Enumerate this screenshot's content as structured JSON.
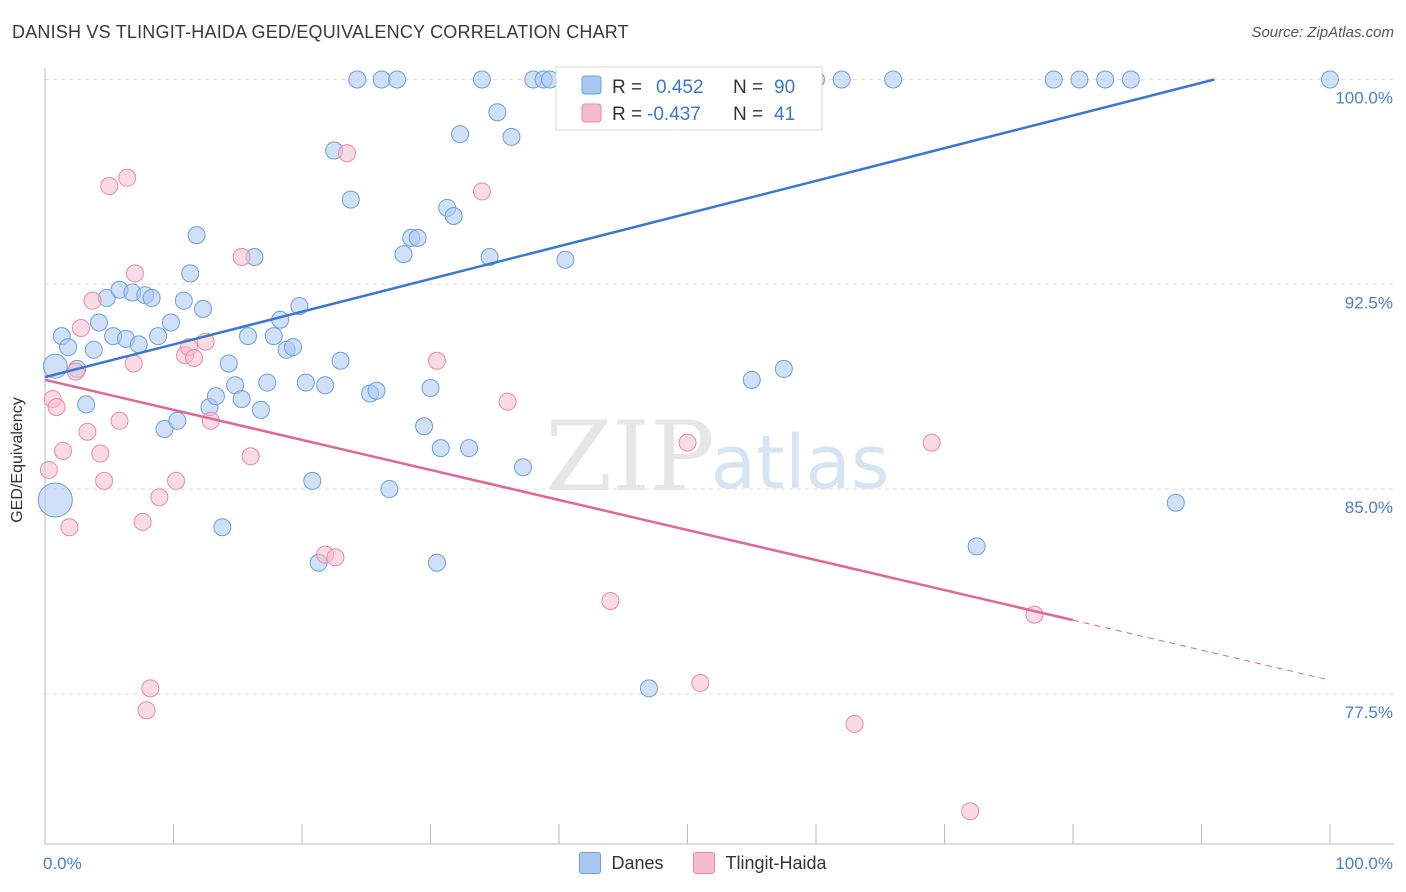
{
  "header": {
    "title": "DANISH VS TLINGIT-HAIDA GED/EQUIVALENCY CORRELATION CHART",
    "source": "Source: ZipAtlas.com"
  },
  "colors": {
    "danes_fill": "#a9c8f0",
    "danes_stroke": "#6a9fe0",
    "danes_line": "#3a78d0",
    "tlingit_fill": "#f6bccd",
    "tlingit_stroke": "#e88aa6",
    "tlingit_line": "#e0669a",
    "tick_label": "#4a7fd0",
    "grid": "#dddddd"
  },
  "watermark": {
    "zip": "ZIP",
    "atlas": "atlas"
  },
  "legend_stats": [
    {
      "r_label": "R =",
      "r_value": "0.452",
      "n_label": "N =",
      "n_value": "90"
    },
    {
      "r_label": "R =",
      "r_value": "-0.437",
      "n_label": "N =",
      "n_value": "41"
    }
  ],
  "chart_data": {
    "type": "scatter",
    "title": "DANISH VS TLINGIT-HAIDA GED/EQUIVALENCY CORRELATION CHART",
    "xlabel": "",
    "ylabel": "GED/Equivalency",
    "xlim": [
      0,
      100
    ],
    "ylim": [
      72,
      100.5
    ],
    "x_tick_labels": [
      "0.0%",
      "100.0%"
    ],
    "y_ticks": [
      {
        "value": 77.5,
        "label": "77.5%"
      },
      {
        "value": 85.0,
        "label": "85.0%"
      },
      {
        "value": 92.5,
        "label": "92.5%"
      },
      {
        "value": 100.0,
        "label": "100.0%"
      }
    ],
    "grid": true,
    "legend_position": "bottom",
    "series": [
      {
        "name": "Danes",
        "trend": {
          "x": [
            0,
            91
          ],
          "y": [
            89.1,
            100.0
          ]
        },
        "points": [
          [
            0.8,
            84.6
          ],
          [
            0.8,
            89.5
          ],
          [
            1.3,
            90.6
          ],
          [
            1.8,
            90.2
          ],
          [
            2.5,
            89.4
          ],
          [
            3.2,
            88.1
          ],
          [
            3.8,
            90.1
          ],
          [
            4.2,
            91.1
          ],
          [
            4.8,
            92.0
          ],
          [
            5.3,
            90.6
          ],
          [
            5.8,
            92.3
          ],
          [
            6.3,
            90.5
          ],
          [
            6.8,
            92.2
          ],
          [
            7.3,
            90.3
          ],
          [
            7.8,
            92.1
          ],
          [
            8.3,
            92.0
          ],
          [
            8.8,
            90.6
          ],
          [
            9.3,
            87.2
          ],
          [
            9.8,
            91.1
          ],
          [
            10.3,
            87.5
          ],
          [
            10.8,
            91.9
          ],
          [
            11.3,
            92.9
          ],
          [
            11.8,
            94.3
          ],
          [
            12.3,
            91.6
          ],
          [
            12.8,
            88.0
          ],
          [
            13.3,
            88.4
          ],
          [
            13.8,
            83.6
          ],
          [
            14.3,
            89.6
          ],
          [
            14.8,
            88.8
          ],
          [
            15.3,
            88.3
          ],
          [
            15.8,
            90.6
          ],
          [
            16.3,
            93.5
          ],
          [
            16.8,
            87.9
          ],
          [
            17.3,
            88.9
          ],
          [
            17.8,
            90.6
          ],
          [
            18.3,
            91.2
          ],
          [
            18.8,
            90.1
          ],
          [
            19.3,
            90.2
          ],
          [
            19.8,
            91.7
          ],
          [
            20.3,
            88.9
          ],
          [
            20.8,
            85.3
          ],
          [
            21.3,
            82.3
          ],
          [
            21.8,
            88.8
          ],
          [
            22.5,
            97.4
          ],
          [
            23.0,
            89.7
          ],
          [
            23.8,
            95.6
          ],
          [
            24.3,
            100.0
          ],
          [
            25.3,
            88.5
          ],
          [
            25.8,
            88.6
          ],
          [
            26.2,
            100.0
          ],
          [
            26.8,
            85.0
          ],
          [
            27.4,
            100.0
          ],
          [
            27.9,
            93.6
          ],
          [
            28.5,
            94.2
          ],
          [
            29.0,
            94.2
          ],
          [
            29.5,
            87.3
          ],
          [
            30.0,
            88.7
          ],
          [
            30.5,
            82.3
          ],
          [
            30.8,
            86.5
          ],
          [
            31.3,
            95.3
          ],
          [
            31.8,
            95.0
          ],
          [
            32.3,
            98.0
          ],
          [
            33.0,
            86.5
          ],
          [
            34.0,
            100.0
          ],
          [
            34.6,
            93.5
          ],
          [
            35.2,
            98.8
          ],
          [
            36.3,
            97.9
          ],
          [
            37.2,
            85.8
          ],
          [
            38.0,
            100.0
          ],
          [
            38.8,
            100.0
          ],
          [
            39.3,
            100.0
          ],
          [
            40.5,
            93.4
          ],
          [
            42.3,
            100.0
          ],
          [
            44.0,
            100.0
          ],
          [
            46.0,
            100.0
          ],
          [
            47.0,
            77.7
          ],
          [
            48.5,
            100.0
          ],
          [
            55.0,
            89.0
          ],
          [
            55.8,
            100.0
          ],
          [
            57.5,
            89.4
          ],
          [
            60.0,
            100.0
          ],
          [
            62.0,
            100.0
          ],
          [
            66.0,
            100.0
          ],
          [
            72.5,
            82.9
          ],
          [
            78.5,
            100.0
          ],
          [
            80.5,
            100.0
          ],
          [
            82.5,
            100.0
          ],
          [
            84.5,
            100.0
          ],
          [
            88.0,
            84.5
          ],
          [
            100.0,
            100.0
          ]
        ]
      },
      {
        "name": "Tlingit-Haida",
        "trend": {
          "x": [
            0,
            80
          ],
          "y": [
            89.0,
            80.2
          ],
          "dashed_to": {
            "x": 100,
            "y": 78.0
          }
        },
        "points": [
          [
            0.3,
            85.7
          ],
          [
            0.6,
            88.3
          ],
          [
            0.9,
            88.0
          ],
          [
            1.4,
            86.4
          ],
          [
            1.9,
            83.6
          ],
          [
            2.4,
            89.3
          ],
          [
            2.8,
            90.9
          ],
          [
            3.3,
            87.1
          ],
          [
            3.7,
            91.9
          ],
          [
            4.3,
            86.3
          ],
          [
            4.6,
            85.3
          ],
          [
            5.0,
            96.1
          ],
          [
            5.8,
            87.5
          ],
          [
            6.4,
            96.4
          ],
          [
            6.9,
            89.6
          ],
          [
            7.0,
            92.9
          ],
          [
            7.6,
            83.8
          ],
          [
            7.9,
            76.9
          ],
          [
            8.2,
            77.7
          ],
          [
            8.9,
            84.7
          ],
          [
            10.2,
            85.3
          ],
          [
            10.9,
            89.9
          ],
          [
            11.2,
            90.2
          ],
          [
            11.6,
            89.8
          ],
          [
            12.5,
            90.4
          ],
          [
            12.9,
            87.5
          ],
          [
            15.3,
            93.5
          ],
          [
            16.0,
            86.2
          ],
          [
            21.8,
            82.6
          ],
          [
            22.6,
            82.5
          ],
          [
            23.5,
            97.3
          ],
          [
            30.5,
            89.7
          ],
          [
            34.0,
            95.9
          ],
          [
            36.0,
            88.2
          ],
          [
            44.0,
            80.9
          ],
          [
            50.0,
            86.7
          ],
          [
            51.0,
            77.9
          ],
          [
            63.0,
            76.4
          ],
          [
            69.0,
            86.7
          ],
          [
            72.0,
            73.2
          ],
          [
            77.0,
            80.4
          ]
        ]
      }
    ]
  }
}
